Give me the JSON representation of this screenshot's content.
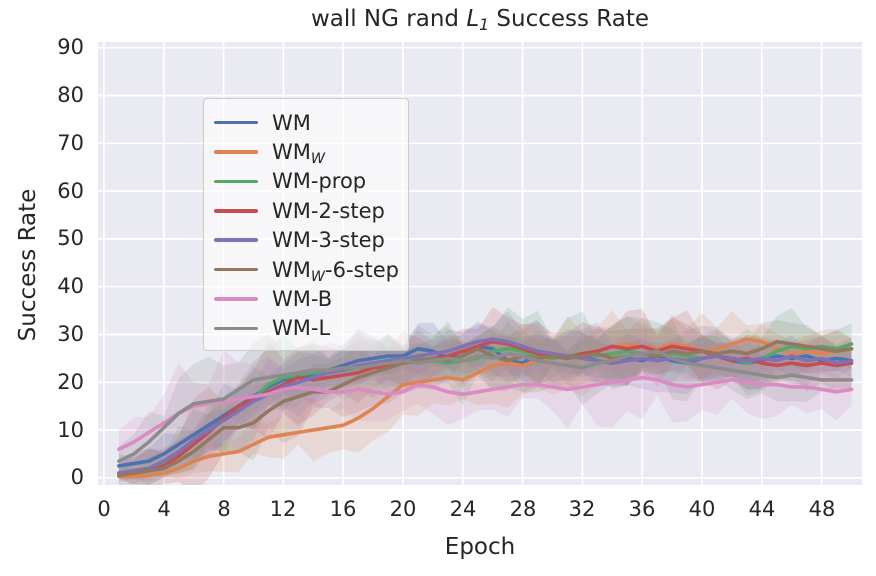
{
  "title_parts": [
    {
      "t": "wall NG rand "
    },
    {
      "t": "L",
      "italic": true
    },
    {
      "t": "1",
      "sub": true,
      "italic": false
    },
    {
      "t": " Success Rate"
    }
  ],
  "colors": {
    "figure_bg": "#ffffff",
    "axes_bg": "#eaeaf2",
    "grid": "#ffffff",
    "text": "#262626",
    "legend_border": "#cccccc"
  },
  "chart_data": {
    "type": "line",
    "title": "wall NG rand L_1 Success Rate",
    "xlabel": "Epoch",
    "ylabel": "Success Rate",
    "x_ticks": [
      0,
      4,
      8,
      12,
      16,
      20,
      24,
      28,
      32,
      36,
      40,
      44,
      48
    ],
    "y_ticks": [
      0,
      10,
      20,
      30,
      40,
      50,
      60,
      70,
      80,
      90
    ],
    "xlim": [
      -0.4,
      50.7
    ],
    "ylim": [
      -1.5,
      91.2
    ],
    "grid": true,
    "legend_position": "upper left",
    "band_alpha": 0.18,
    "line_width": 3.6,
    "spread_epochs": [
      1,
      6,
      11,
      16,
      21,
      26,
      31,
      36,
      41,
      46,
      50
    ],
    "x": [
      1,
      2,
      3,
      4,
      5,
      6,
      7,
      8,
      9,
      10,
      11,
      12,
      13,
      14,
      15,
      16,
      17,
      18,
      19,
      20,
      21,
      22,
      23,
      24,
      25,
      26,
      27,
      28,
      29,
      30,
      31,
      32,
      33,
      34,
      35,
      36,
      37,
      38,
      39,
      40,
      41,
      42,
      43,
      44,
      45,
      46,
      47,
      48,
      49,
      50
    ],
    "series": [
      {
        "name": "WM",
        "name_parts": [
          {
            "t": "WM"
          }
        ],
        "color": "#4C72B0",
        "values": [
          2.5,
          3,
          3.5,
          5,
          7,
          9,
          11,
          13,
          15,
          17,
          19,
          20.5,
          21,
          21.5,
          22.5,
          23.5,
          24.5,
          25,
          25.5,
          25.5,
          27,
          26.5,
          25,
          25.5,
          27.5,
          27,
          24.5,
          24,
          26,
          25.5,
          25,
          25.5,
          24.5,
          24,
          25,
          24.5,
          25.5,
          24.5,
          24,
          25,
          25.5,
          24.5,
          24,
          24.5,
          25.5,
          25,
          25.5,
          24.5,
          25,
          24.5
        ],
        "band_spread": [
          2,
          4,
          5,
          4,
          4,
          5,
          4,
          3.5,
          4,
          4,
          3
        ]
      },
      {
        "name": "WM_W",
        "name_parts": [
          {
            "t": "WM"
          },
          {
            "t": "W",
            "sub": true
          }
        ],
        "color": "#DD8452",
        "values": [
          0.3,
          0.3,
          0.5,
          1,
          2,
          3.5,
          4.5,
          5,
          5.5,
          7,
          8.5,
          9,
          9.5,
          10,
          10.5,
          11,
          12.5,
          14.5,
          17,
          19.5,
          20,
          20.5,
          21,
          20.5,
          22,
          23.5,
          24,
          23.5,
          24.5,
          25,
          25.5,
          26,
          26.5,
          27.5,
          28,
          27.5,
          27,
          28,
          27.5,
          26.5,
          27,
          28,
          29,
          28.5,
          27,
          26,
          26.5,
          26,
          26.5,
          27
        ],
        "band_spread": [
          0.5,
          2,
          4,
          5,
          5,
          6,
          7,
          6,
          5,
          4,
          3
        ]
      },
      {
        "name": "WM-prop",
        "name_parts": [
          {
            "t": "WM-prop"
          }
        ],
        "color": "#55A868",
        "values": [
          1,
          1.5,
          2,
          3,
          5,
          7.5,
          10,
          12,
          14,
          16.5,
          19.5,
          21,
          21.5,
          22,
          22,
          22.5,
          23,
          23.5,
          24,
          24.5,
          25,
          24.5,
          24,
          24.5,
          25,
          26.5,
          27,
          26.5,
          25.5,
          25,
          25.5,
          26,
          25.5,
          26,
          26.5,
          26,
          25.5,
          26,
          25.5,
          25,
          25.5,
          25,
          24,
          25,
          26.5,
          27.5,
          27,
          27.5,
          27,
          28
        ],
        "band_spread": [
          2,
          5,
          6,
          5,
          5,
          7,
          6,
          5,
          4,
          6,
          4
        ]
      },
      {
        "name": "WM-2-step",
        "name_parts": [
          {
            "t": "WM-2-step"
          }
        ],
        "color": "#C44E52",
        "values": [
          1,
          1,
          1.5,
          2.5,
          4.5,
          7,
          9.5,
          12.5,
          15,
          16.5,
          18,
          19.5,
          21,
          20.5,
          21,
          21.5,
          22,
          23,
          23.5,
          24,
          24.5,
          25,
          25.5,
          26.5,
          27.5,
          28.5,
          28,
          27,
          26,
          25.5,
          25,
          26,
          26.5,
          27.5,
          27,
          27.5,
          26.5,
          27.5,
          27,
          26.5,
          25.5,
          24.5,
          25,
          24,
          23.5,
          24,
          23.5,
          24,
          23.5,
          24
        ],
        "band_spread": [
          2,
          7,
          8,
          6,
          5,
          5,
          5,
          6,
          5,
          5,
          4
        ]
      },
      {
        "name": "WM-3-step",
        "name_parts": [
          {
            "t": "WM-3-step"
          }
        ],
        "color": "#8172B3",
        "values": [
          1,
          1.5,
          2,
          3.5,
          5.5,
          8,
          10,
          12,
          14,
          16,
          17.5,
          19,
          20,
          21,
          22,
          22.5,
          23.5,
          24,
          24.5,
          25,
          25.5,
          26,
          26.5,
          27.5,
          28.5,
          29,
          28.5,
          27.5,
          26.5,
          26,
          25.5,
          25,
          24.5,
          24,
          24.5,
          25,
          24.5,
          25,
          24.5,
          25,
          25.5,
          25,
          24.5,
          25,
          24.5,
          25.5,
          24.5,
          25,
          24,
          24.5
        ],
        "band_spread": [
          2,
          4,
          5,
          5,
          5,
          5,
          5,
          6,
          4,
          4,
          3
        ]
      },
      {
        "name": "WM_W-6-step",
        "name_parts": [
          {
            "t": "WM"
          },
          {
            "t": "W",
            "sub": true
          },
          {
            "t": "-6-step"
          }
        ],
        "color": "#937860",
        "values": [
          0.5,
          1,
          1.5,
          2,
          3.5,
          5.5,
          8,
          10.5,
          10.5,
          11.5,
          14,
          16,
          17,
          18,
          18,
          19.5,
          21,
          22,
          23,
          24,
          24.5,
          25,
          24.5,
          25.5,
          27,
          25.5,
          24.5,
          25.5,
          25,
          25.5,
          25,
          25.5,
          26,
          25,
          25.5,
          26,
          25.5,
          26.5,
          26,
          26.5,
          26,
          26.5,
          26,
          27,
          28.5,
          28,
          27.5,
          27,
          26.5,
          27
        ],
        "band_spread": [
          1,
          4,
          6,
          5,
          5,
          5,
          4,
          5,
          4,
          4,
          3
        ]
      },
      {
        "name": "WM-B",
        "name_parts": [
          {
            "t": "WM-B"
          }
        ],
        "color": "#DA8BC3",
        "values": [
          6,
          7.5,
          9.5,
          11.5,
          13.5,
          15,
          15.5,
          16,
          16.5,
          17,
          17.5,
          18.5,
          19,
          18.5,
          18,
          18,
          18.5,
          18,
          17.5,
          18,
          19.5,
          19,
          18,
          17.5,
          18,
          18.5,
          19,
          19.5,
          19.5,
          19,
          18.5,
          19,
          19.5,
          20,
          20.5,
          21,
          20.5,
          19.5,
          19,
          19.5,
          20,
          20.5,
          20,
          19.5,
          19.5,
          19,
          19,
          18.5,
          18,
          18.5
        ],
        "band_spread": [
          4,
          8,
          7,
          6,
          5,
          6,
          6,
          7,
          6,
          5,
          4
        ]
      },
      {
        "name": "WM-L",
        "name_parts": [
          {
            "t": "WM-L"
          }
        ],
        "color": "#8C8C8C",
        "values": [
          3.5,
          5,
          7.5,
          10.5,
          13.5,
          15.5,
          16,
          16.5,
          18.5,
          20.5,
          21,
          21.5,
          22,
          22.5,
          22.5,
          23,
          23,
          23.5,
          24,
          24.5,
          24,
          24.5,
          25,
          24.5,
          25.5,
          25,
          26,
          25.5,
          24.5,
          24,
          23.5,
          23,
          24,
          24.5,
          25.5,
          26,
          26.5,
          25,
          24,
          23.5,
          23,
          22.5,
          22,
          21.5,
          21,
          21.5,
          21,
          20.5,
          20.5,
          20.5
        ],
        "band_spread": [
          3,
          7,
          6,
          5,
          4,
          5,
          5,
          6,
          5,
          4,
          3
        ]
      }
    ]
  }
}
